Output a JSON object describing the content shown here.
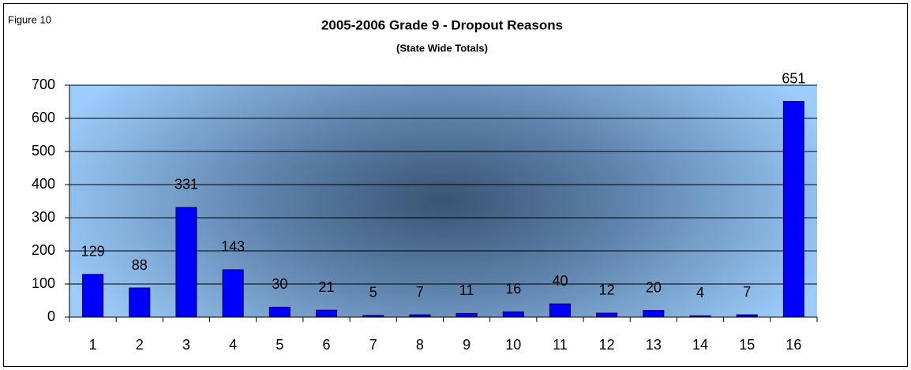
{
  "chart_data": {
    "type": "bar",
    "figure_label": "Figure 10",
    "title": "2005-2006 Grade 9 - Dropout Reasons",
    "subtitle": "(State Wide Totals)",
    "categories": [
      "1",
      "2",
      "3",
      "4",
      "5",
      "6",
      "7",
      "8",
      "9",
      "10",
      "11",
      "12",
      "13",
      "14",
      "15",
      "16"
    ],
    "values": [
      129,
      88,
      331,
      143,
      30,
      21,
      5,
      7,
      11,
      16,
      40,
      12,
      20,
      4,
      7,
      651
    ],
    "color": "#0000ff",
    "ylim": [
      0,
      700
    ],
    "yticks": [
      0,
      100,
      200,
      300,
      400,
      500,
      600,
      700
    ],
    "grid": true
  }
}
